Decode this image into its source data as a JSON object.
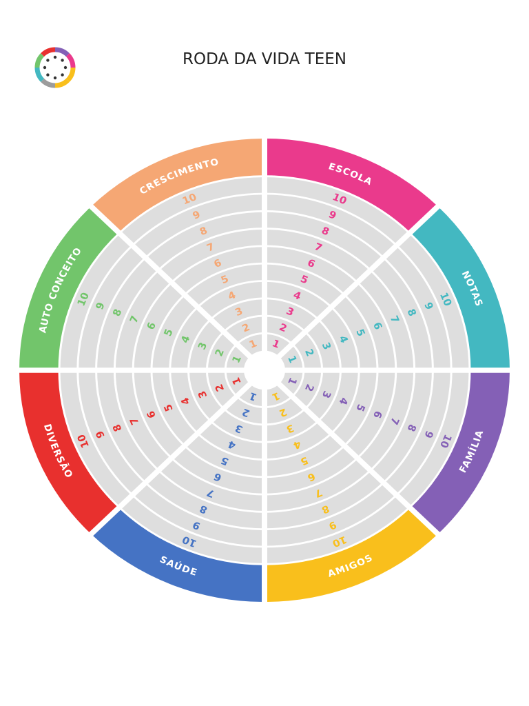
{
  "title": "RODA DA VIDA TEEN",
  "scale": [
    1,
    2,
    3,
    4,
    5,
    6,
    7,
    8,
    9,
    10
  ],
  "segments": [
    {
      "label": "ESCOLA",
      "color": "#ea3a8c"
    },
    {
      "label": "NOTAS",
      "color": "#43b8c1"
    },
    {
      "label": "FAMÍLIA",
      "color": "#8460b6"
    },
    {
      "label": "AMIGOS",
      "color": "#f9bf1c"
    },
    {
      "label": "SAÚDE",
      "color": "#4573c4"
    },
    {
      "label": "DIVERSÃO",
      "color": "#e8302e"
    },
    {
      "label": "AUTO CONCEITO",
      "color": "#72c56b"
    },
    {
      "label": "CRESCIMENTO",
      "color": "#f5a774"
    }
  ]
}
